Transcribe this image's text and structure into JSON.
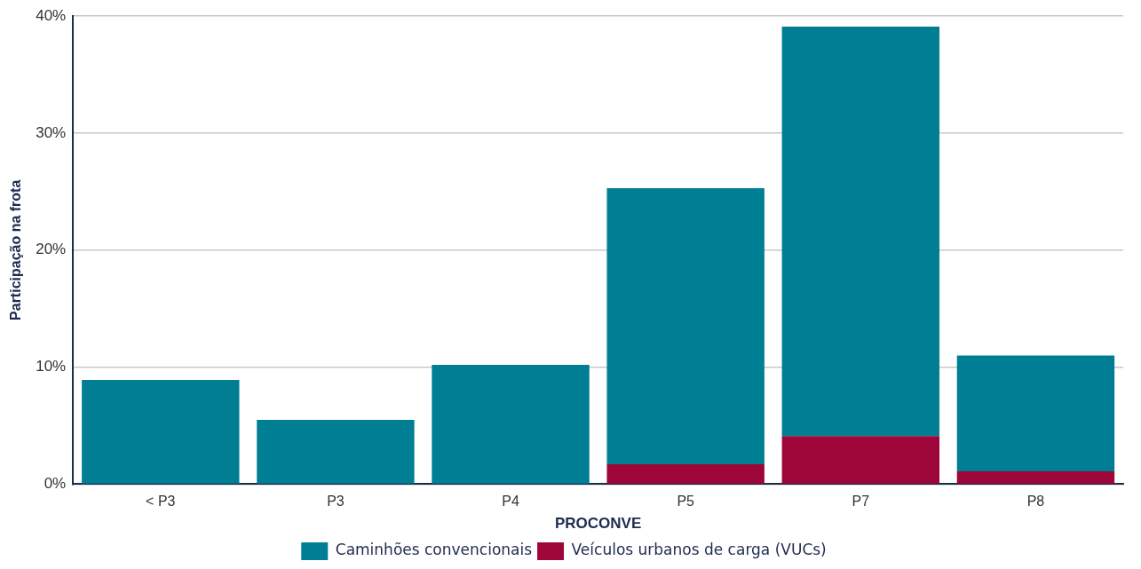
{
  "chart_data": {
    "type": "bar",
    "xlabel": "PROCONVE",
    "ylabel": "Participação na frota",
    "categories": [
      "< P3",
      "P3",
      "P4",
      "P5",
      "P7",
      "P8"
    ],
    "series": [
      {
        "name": "Veículos urbanos de carga (VUCs)",
        "color": "#9e0538",
        "values": [
          0,
          0,
          0,
          1.7,
          4.1,
          1.1
        ]
      },
      {
        "name": "Caminhões convencionais",
        "color": "#007f94",
        "values": [
          8.9,
          5.5,
          10.2,
          23.6,
          35.0,
          9.9
        ]
      }
    ],
    "stacked": true,
    "ylim": [
      0,
      40
    ],
    "yticks": [
      {
        "value": 0,
        "label": "0%"
      },
      {
        "value": 10,
        "label": "10%"
      },
      {
        "value": 20,
        "label": "20%"
      },
      {
        "value": 30,
        "label": "30%"
      },
      {
        "value": 40,
        "label": "40%"
      }
    ],
    "grid": "y",
    "legend": "bottom"
  }
}
